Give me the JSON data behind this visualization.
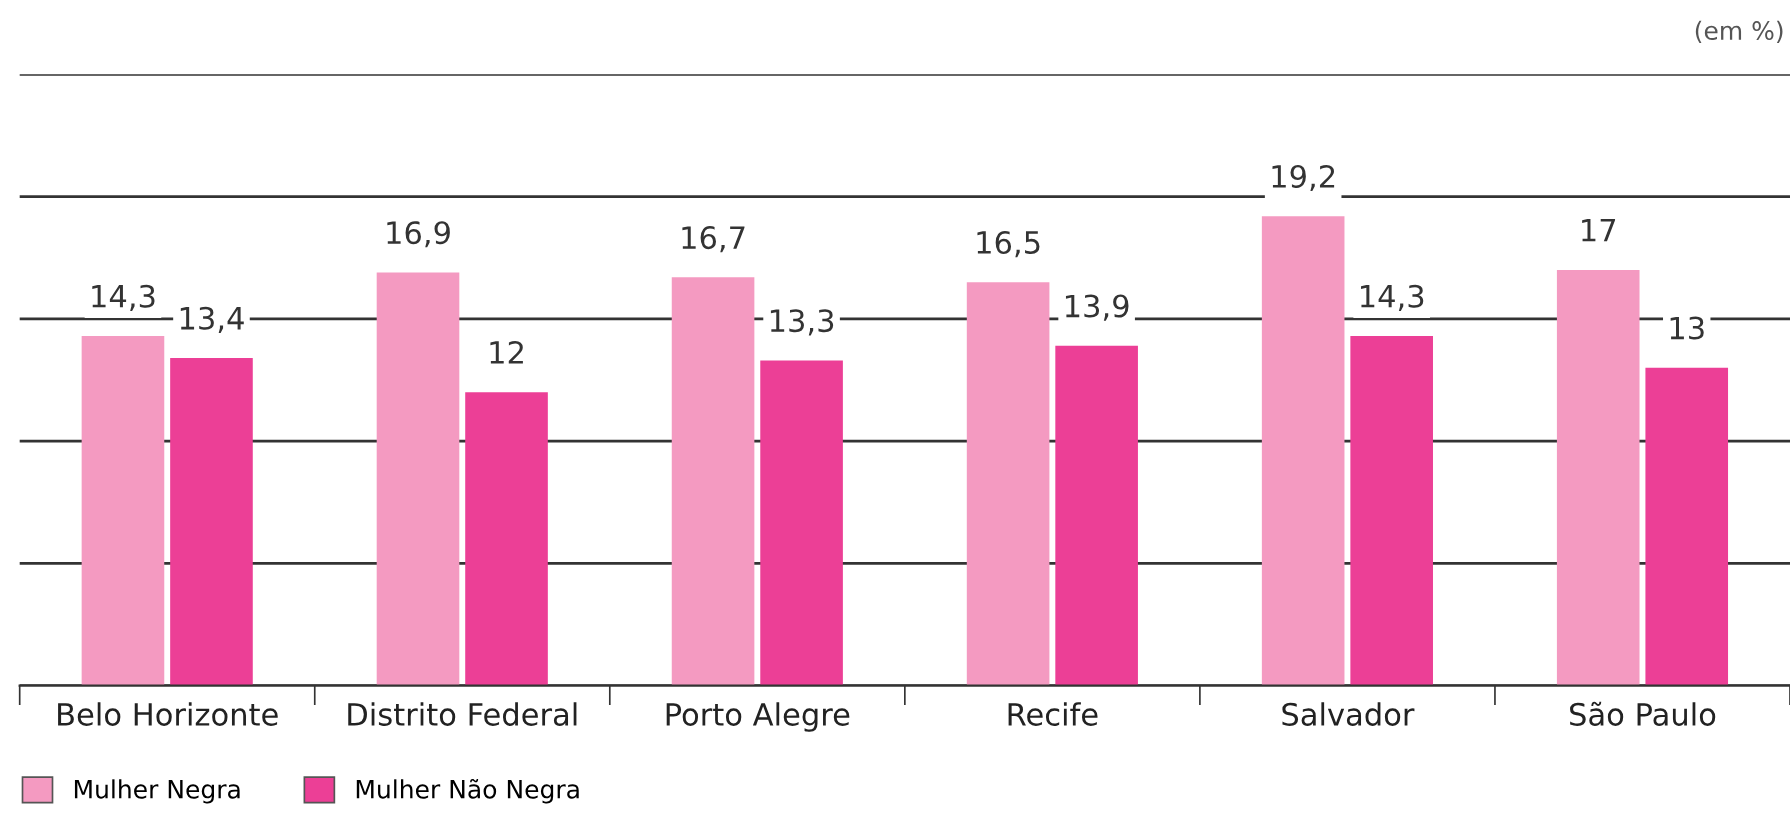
{
  "chart_data": {
    "type": "bar",
    "annotations": [
      "(em %)"
    ],
    "categories": [
      "Belo Horizonte",
      "Distrito Federal",
      "Porto Alegre",
      "Recife",
      "Salvador",
      "São Paulo"
    ],
    "series": [
      {
        "name": "Mulher Negra",
        "color": "#f49ac1",
        "values": [
          14.3,
          16.9,
          16.7,
          16.5,
          19.2,
          17
        ],
        "value_labels": [
          "14,3",
          "16,9",
          "16,7",
          "16,5",
          "19,2",
          "17"
        ]
      },
      {
        "name": "Mulher Não Negra",
        "color": "#ec3f96",
        "values": [
          13.4,
          12,
          13.3,
          13.9,
          14.3,
          13
        ],
        "value_labels": [
          "13,4",
          "12",
          "13,3",
          "13,9",
          "14,3",
          "13"
        ]
      }
    ],
    "ylim": [
      0,
      25
    ],
    "yticks": [
      {
        "value": 0,
        "label": null
      },
      {
        "value": 5,
        "label": null
      },
      {
        "value": 10,
        "label": null
      },
      {
        "value": 15,
        "label": null
      },
      {
        "value": 20,
        "label": null
      },
      {
        "value": 25,
        "label": null
      }
    ],
    "grid": "y",
    "legend": "bottom left",
    "tick_labels": "x"
  }
}
